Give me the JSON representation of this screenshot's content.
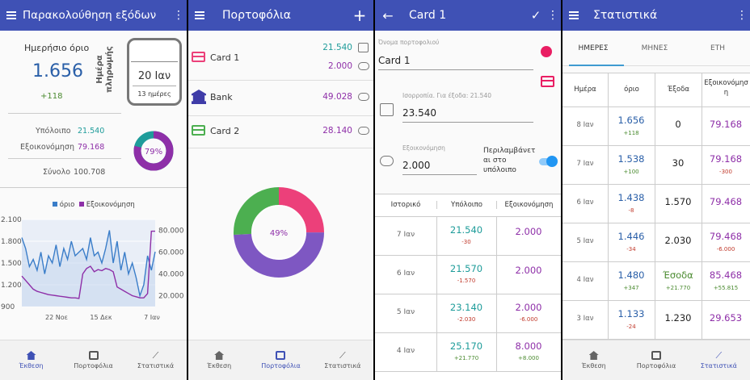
{
  "overview": {
    "title": "Παρακολούθηση εξόδων",
    "daily_limit_label": "Ημερήσιο όριο",
    "daily_limit_value": "1.656",
    "daily_limit_delta": "+118",
    "payday_label": "Ημέρα πληρωμής",
    "payday_date": "20 Ιαν",
    "payday_days": "13 ημέρες",
    "balance_label": "Υπόλοιπο",
    "balance_value": "21.540",
    "savings_label": "Εξοικονόμηση",
    "savings_value": "79.168",
    "total_label": "Σύνολο",
    "total_value": "100.708",
    "donut_percent": "79%",
    "donut_fraction": 0.79,
    "colors": {
      "balance": "#1e9c9a",
      "savings": "#8e2fa8",
      "limit": "#3a7dc9"
    }
  },
  "chart_data": {
    "type": "line",
    "legend": [
      "όριο",
      "Εξοικονόμηση"
    ],
    "legend_position": "top",
    "x_ticks": [
      "22 Νοε",
      "15 Δεκ",
      "7 Ιαν"
    ],
    "y_left_ticks": [
      "2.100",
      "1.800",
      "1.500",
      "1.200",
      "900"
    ],
    "y_right_ticks": [
      "80.000",
      "60.000",
      "40.000",
      "20.000"
    ],
    "y_left_range": [
      900,
      2100
    ],
    "y_right_range": [
      10000,
      90000
    ],
    "series": [
      {
        "name": "όριο",
        "axis": "left",
        "values": [
          1850,
          1700,
          1450,
          1550,
          1400,
          1650,
          1350,
          1600,
          1500,
          1750,
          1450,
          1700,
          1550,
          1800,
          1600,
          1650,
          1700,
          1550,
          1850,
          1600,
          1650,
          1500,
          1700,
          1950,
          1500,
          1800,
          1400,
          1650,
          1350,
          1500,
          1300,
          1050,
          1200,
          1600,
          1400,
          1656
        ]
      },
      {
        "name": "Εξοικονόμηση",
        "axis": "right",
        "values": [
          38000,
          34000,
          30000,
          26000,
          24000,
          23000,
          22000,
          21000,
          20500,
          20000,
          19500,
          19000,
          18500,
          18000,
          18000,
          17500,
          40000,
          45000,
          47000,
          42000,
          44000,
          43000,
          45000,
          44000,
          42000,
          28000,
          26000,
          24000,
          22000,
          20000,
          19000,
          18000,
          18000,
          22000,
          79168,
          79168
        ]
      }
    ]
  },
  "wallets": {
    "title": "Πορτοφόλια",
    "items": [
      {
        "name": "Card 1",
        "balance": "21.540",
        "savings": "2.000"
      },
      {
        "name": "Bank",
        "savings": "49.028"
      },
      {
        "name": "Card 2",
        "savings": "28.140"
      }
    ],
    "donut_percent": "49%",
    "slices": [
      {
        "name": "Card 1",
        "fraction": 0.25,
        "color": "#ec407a"
      },
      {
        "name": "Bank",
        "fraction": 0.49,
        "color": "#7e57c2"
      },
      {
        "name": "Card 2",
        "fraction": 0.26,
        "color": "#4caf50"
      }
    ]
  },
  "card": {
    "title": "Card 1",
    "name_label": "Όνομα πορτοφολιού",
    "name_value": "Card 1",
    "balance_hint": "Ισορροπία. Για έξοδα: 21.540",
    "balance_value": "23.540",
    "savings_label": "Εξοικονόμηση",
    "savings_value": "2.000",
    "include_label": "Περιλαμβάνετ αι στο υπόλοιπο",
    "history_headers": [
      "Ιστορικό",
      "Υπόλοιπο",
      "Εξοικονόμηση"
    ],
    "history": [
      {
        "date": "7 Ιαν",
        "balance": "21.540",
        "balance_delta": "-30",
        "savings": "2.000",
        "savings_delta": ""
      },
      {
        "date": "6 Ιαν",
        "balance": "21.570",
        "balance_delta": "-1.570",
        "savings": "2.000",
        "savings_delta": ""
      },
      {
        "date": "5 Ιαν",
        "balance": "23.140",
        "balance_delta": "-2.030",
        "savings": "2.000",
        "savings_delta": "-6.000"
      },
      {
        "date": "4 Ιαν",
        "balance": "25.170",
        "balance_delta": "+21.770",
        "savings": "8.000",
        "savings_delta": "+8.000"
      }
    ]
  },
  "stats": {
    "title": "Στατιστικά",
    "tabs": [
      "ΗΜΕΡΕΣ",
      "ΜΗΝΕΣ",
      "ΕΤΗ"
    ],
    "headers": [
      "Ημέρα",
      "όριο",
      "Έξοδα",
      "Εξοικονόμησ η"
    ],
    "rows": [
      {
        "day": "8 Ιαν",
        "limit": "1.656",
        "limit_delta": "+118",
        "expenses": "0",
        "expenses_delta": "",
        "savings": "79.168",
        "savings_delta": ""
      },
      {
        "day": "7 Ιαν",
        "limit": "1.538",
        "limit_delta": "+100",
        "expenses": "30",
        "expenses_delta": "",
        "savings": "79.168",
        "savings_delta": "-300"
      },
      {
        "day": "6 Ιαν",
        "limit": "1.438",
        "limit_delta": "-8",
        "expenses": "1.570",
        "expenses_delta": "",
        "savings": "79.468",
        "savings_delta": ""
      },
      {
        "day": "5 Ιαν",
        "limit": "1.446",
        "limit_delta": "-34",
        "expenses": "2.030",
        "expenses_delta": "",
        "savings": "79.468",
        "savings_delta": "-6.000"
      },
      {
        "day": "4 Ιαν",
        "limit": "1.480",
        "limit_delta": "+347",
        "expenses": "Έσοδα",
        "expenses_delta": "+21.770",
        "savings": "85.468",
        "savings_delta": "+55.815"
      },
      {
        "day": "3 Ιαν",
        "limit": "1.133",
        "limit_delta": "-24",
        "expenses": "1.230",
        "expenses_delta": "",
        "savings": "29.653",
        "savings_delta": ""
      }
    ]
  },
  "nav": {
    "overview": "Έκθεση",
    "wallets": "Πορτοφόλια",
    "stats": "Στατιστικά"
  }
}
